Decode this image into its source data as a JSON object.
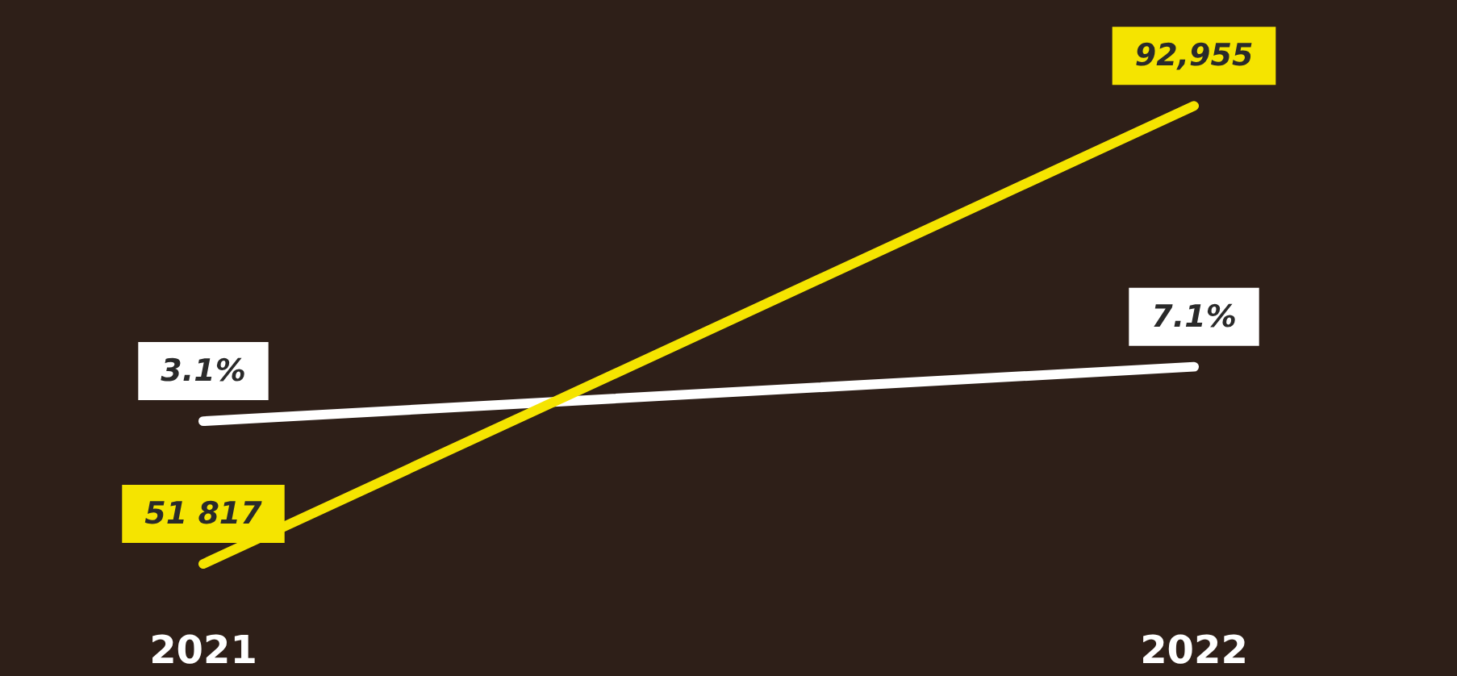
{
  "chart_data": {
    "type": "line",
    "categories": [
      "2021",
      "2022"
    ],
    "series": [
      {
        "color": "#f5e400",
        "values": [
          51817,
          92955
        ],
        "value_labels": [
          "51 817",
          "92,955"
        ]
      },
      {
        "color": "#ffffff",
        "values": [
          3.1,
          7.1
        ],
        "value_labels": [
          "3.1%",
          "7.1%"
        ],
        "axis": "y2"
      }
    ],
    "tick_labels": "x",
    "legend": false,
    "marker": "none",
    "line_style": "solid"
  }
}
